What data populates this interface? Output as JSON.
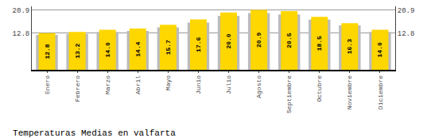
{
  "chart_data": {
    "type": "bar",
    "title": "Temperaturas Medias en valfarta",
    "categories": [
      "Enero",
      "Febrero",
      "Marzo",
      "Abril",
      "Mayo",
      "Junio",
      "Julio",
      "Agosto",
      "Septiembre",
      "Octubre",
      "Noviembre",
      "Diciembre"
    ],
    "series": [
      {
        "color": "#BBBBBB",
        "values": [
          12.2,
          12.5,
          13.2,
          13.6,
          14.8,
          16.5,
          18.8,
          19.8,
          19.3,
          17.5,
          15.5,
          13.2
        ]
      },
      {
        "color": "#FFD700",
        "values": [
          12.8,
          13.2,
          14.0,
          14.4,
          15.7,
          17.6,
          20.0,
          20.9,
          20.5,
          18.5,
          16.3,
          14.0
        ],
        "data_labels": true,
        "value_labels": [
          "12.8",
          "13.2",
          "14.0",
          "14.4",
          "15.7",
          "17.6",
          "20.0",
          "20.9",
          "20.5",
          "18.5",
          "16.3",
          "14.0"
        ]
      }
    ],
    "ylim": [
      0,
      22.154
    ],
    "yticks": [
      12.8,
      20.9
    ],
    "y2lim": [
      0,
      22.154
    ],
    "y2ticks": [
      12.8,
      20.9
    ],
    "grid": true
  }
}
